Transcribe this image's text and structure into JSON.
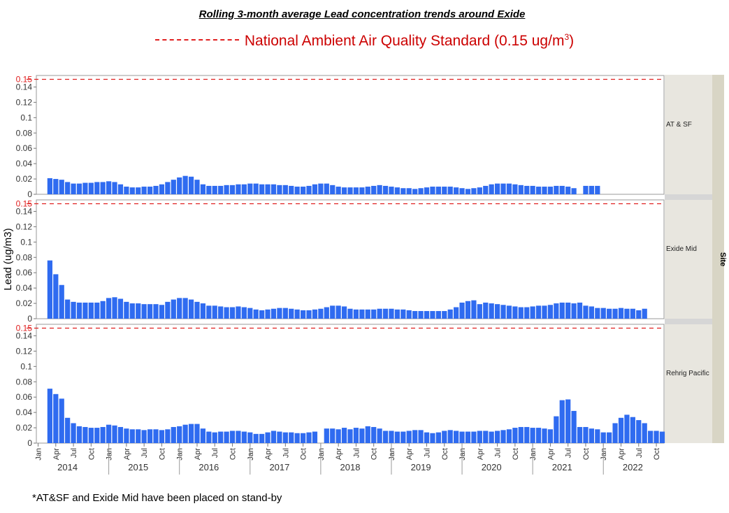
{
  "title": "Rolling 3-month average Lead concentration trends around Exide",
  "legend": {
    "prefix": "National Ambient Air Quality Standard (0.15 ug/m",
    "sup": "3",
    "suffix": ")",
    "line_color": "#e02020"
  },
  "footnote": "*AT&SF and Exide Mid have been placed on stand-by",
  "colors": {
    "bar": "#2f6bf0",
    "standard": "#e02020"
  },
  "chart_data": {
    "type": "bar",
    "title": "Rolling 3-month average Lead concentration trends around Exide",
    "ylabel": "Lead (ug/m3)",
    "group_label": "Site",
    "ylim": [
      0,
      0.15
    ],
    "yticks": [
      0,
      0.02,
      0.04,
      0.06,
      0.08,
      0.1,
      0.12,
      0.14
    ],
    "reference_line": {
      "value": 0.15,
      "label": "0.15"
    },
    "x_start": "2014-01",
    "month_ticks": [
      "Jan",
      "Apr",
      "Jul",
      "Oct"
    ],
    "years": [
      "2014",
      "2015",
      "2016",
      "2017",
      "2018",
      "2019",
      "2020",
      "2021",
      "2022"
    ],
    "series": [
      {
        "name": "AT & SF",
        "start_month": 2,
        "values": [
          0.021,
          0.02,
          0.019,
          0.016,
          0.014,
          0.014,
          0.015,
          0.015,
          0.016,
          0.016,
          0.017,
          0.016,
          0.013,
          0.01,
          0.009,
          0.009,
          0.01,
          0.01,
          0.011,
          0.013,
          0.016,
          0.019,
          0.022,
          0.024,
          0.023,
          0.019,
          0.013,
          0.011,
          0.011,
          0.011,
          0.012,
          0.012,
          0.013,
          0.013,
          0.014,
          0.014,
          0.013,
          0.013,
          0.013,
          0.012,
          0.012,
          0.011,
          0.01,
          0.01,
          0.011,
          0.013,
          0.014,
          0.014,
          0.012,
          0.01,
          0.009,
          0.009,
          0.009,
          0.009,
          0.01,
          0.011,
          0.012,
          0.011,
          0.01,
          0.009,
          0.008,
          0.008,
          0.007,
          0.008,
          0.009,
          0.01,
          0.01,
          0.01,
          0.01,
          0.009,
          0.008,
          0.007,
          0.008,
          0.009,
          0.011,
          0.013,
          0.014,
          0.014,
          0.014,
          0.013,
          0.012,
          0.011,
          0.011,
          0.01,
          0.01,
          0.01,
          0.011,
          0.011,
          0.01,
          0.008,
          null,
          0.011,
          0.011,
          0.011
        ]
      },
      {
        "name": "Exide Mid",
        "start_month": 2,
        "values": [
          0.076,
          0.058,
          0.044,
          0.025,
          0.022,
          0.021,
          0.021,
          0.021,
          0.021,
          0.023,
          0.027,
          0.028,
          0.026,
          0.022,
          0.02,
          0.02,
          0.019,
          0.019,
          0.019,
          0.018,
          0.022,
          0.025,
          0.027,
          0.027,
          0.025,
          0.022,
          0.02,
          0.017,
          0.017,
          0.016,
          0.015,
          0.015,
          0.016,
          0.015,
          0.014,
          0.012,
          0.011,
          0.012,
          0.013,
          0.014,
          0.014,
          0.013,
          0.012,
          0.011,
          0.011,
          0.012,
          0.013,
          0.015,
          0.017,
          0.017,
          0.016,
          0.013,
          0.012,
          0.012,
          0.012,
          0.012,
          0.013,
          0.013,
          0.013,
          0.012,
          0.012,
          0.011,
          0.01,
          0.01,
          0.01,
          0.01,
          0.01,
          0.01,
          0.012,
          0.015,
          0.021,
          0.023,
          0.024,
          0.019,
          0.021,
          0.02,
          0.019,
          0.018,
          0.017,
          0.016,
          0.015,
          0.015,
          0.016,
          0.017,
          0.017,
          0.018,
          0.02,
          0.021,
          0.021,
          0.02,
          0.021,
          0.017,
          0.016,
          0.014,
          0.014,
          0.013,
          0.013,
          0.014,
          0.013,
          0.013,
          0.011,
          0.013
        ]
      },
      {
        "name": "Rehrig Pacific",
        "start_month": 2,
        "values": [
          0.071,
          0.064,
          0.058,
          0.033,
          0.026,
          0.022,
          0.021,
          0.02,
          0.02,
          0.021,
          0.024,
          0.023,
          0.021,
          0.019,
          0.018,
          0.018,
          0.017,
          0.018,
          0.018,
          0.017,
          0.018,
          0.021,
          0.022,
          0.024,
          0.025,
          0.025,
          0.019,
          0.015,
          0.014,
          0.015,
          0.015,
          0.016,
          0.016,
          0.015,
          0.014,
          0.012,
          0.012,
          0.014,
          0.016,
          0.015,
          0.014,
          0.014,
          0.013,
          0.013,
          0.014,
          0.015,
          null,
          0.019,
          0.019,
          0.018,
          0.02,
          0.018,
          0.02,
          0.019,
          0.022,
          0.021,
          0.019,
          0.016,
          0.016,
          0.015,
          0.015,
          0.016,
          0.017,
          0.017,
          0.014,
          0.013,
          0.014,
          0.016,
          0.017,
          0.016,
          0.015,
          0.015,
          0.015,
          0.016,
          0.016,
          0.015,
          0.016,
          0.017,
          0.018,
          0.02,
          0.021,
          0.021,
          0.02,
          0.02,
          0.019,
          0.018,
          0.035,
          0.056,
          0.057,
          0.042,
          0.021,
          0.021,
          0.019,
          0.018,
          0.014,
          0.014,
          0.026,
          0.033,
          0.037,
          0.034,
          0.03,
          0.026,
          0.016,
          0.016,
          0.015
        ]
      }
    ]
  }
}
